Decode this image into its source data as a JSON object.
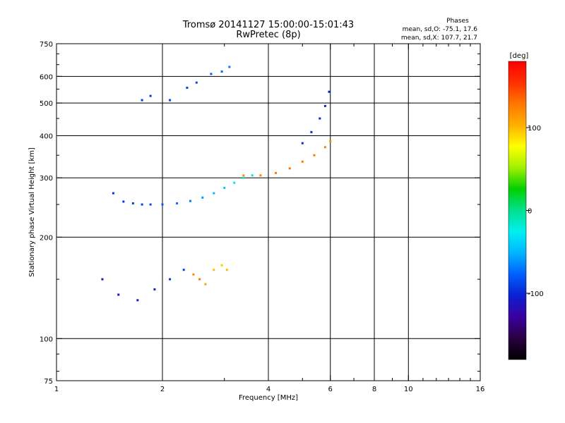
{
  "chart_data": {
    "type": "scatter",
    "title": "Tromsø 20141127 15:00:00-15:01:43",
    "subtitle": "RwPretec (8p)",
    "stats_title": "Phases",
    "stats_o": "mean, sd,O: -75.1, 17.6",
    "stats_x": "mean, sd,X: 107.7, 21.7",
    "xlabel": "Frequency [MHz]",
    "ylabel": "Stationary phase Virtual Height [km]",
    "x_scale": "log",
    "y_scale": "log",
    "xlim": [
      1,
      16
    ],
    "ylim": [
      75,
      750
    ],
    "x_ticks": [
      {
        "value": 1,
        "label": "1"
      },
      {
        "value": 2,
        "label": "2"
      },
      {
        "value": 4,
        "label": "4"
      },
      {
        "value": 6,
        "label": "6"
      },
      {
        "value": 8,
        "label": "8"
      },
      {
        "value": 10,
        "label": "10"
      },
      {
        "value": 16,
        "label": "16"
      }
    ],
    "x_gridlines": [
      2,
      4,
      6,
      8,
      10
    ],
    "y_ticks": [
      {
        "value": 75,
        "label": "75"
      },
      {
        "value": 100,
        "label": "100"
      },
      {
        "value": 200,
        "label": "200"
      },
      {
        "value": 300,
        "label": "300"
      },
      {
        "value": 400,
        "label": "400"
      },
      {
        "value": 500,
        "label": "500"
      },
      {
        "value": 600,
        "label": "600"
      },
      {
        "value": 750,
        "label": "750"
      }
    ],
    "y_gridlines": [
      100,
      200,
      300,
      400,
      500,
      600
    ],
    "grid": true,
    "colorbar": {
      "label": "[deg]",
      "range": [
        -180,
        180
      ],
      "ticks": [
        {
          "value": 100,
          "label": "100"
        },
        {
          "value": 0,
          "label": "0"
        },
        {
          "value": -100,
          "label": "-100"
        }
      ],
      "colors": [
        "#000000",
        "#2a0040",
        "#3b00a0",
        "#0a20d0",
        "#0060ff",
        "#00b4ff",
        "#00f0f0",
        "#00e090",
        "#00d000",
        "#a0f000",
        "#ffff00",
        "#ffb000",
        "#ff7800",
        "#ff3000",
        "#ff0000"
      ]
    },
    "series": [
      {
        "trace": "F-layer O-mode trace (blue)",
        "x": [
          1.45,
          1.55,
          1.65,
          1.75,
          1.85,
          2.0,
          2.2,
          2.4,
          2.6,
          2.8,
          3.0,
          3.2,
          3.4,
          3.6
        ],
        "y": [
          270,
          255,
          252,
          250,
          250,
          250,
          252,
          256,
          262,
          270,
          280,
          290,
          300,
          305
        ],
        "phase": [
          -95,
          -95,
          -92,
          -90,
          -85,
          -80,
          -75,
          -70,
          -60,
          -50,
          -40,
          -30,
          -20,
          -15
        ]
      },
      {
        "trace": "F-layer X-mode trace (orange)",
        "x": [
          3.4,
          3.8,
          4.2,
          4.6,
          5.0,
          5.4,
          5.8,
          6.0
        ],
        "y": [
          305,
          305,
          310,
          320,
          335,
          350,
          370,
          385
        ],
        "phase": [
          120,
          125,
          128,
          130,
          130,
          128,
          125,
          122
        ]
      },
      {
        "trace": "F2 cusp O-mode (blue)",
        "x": [
          5.0,
          5.3,
          5.6,
          5.8,
          5.95
        ],
        "y": [
          380,
          410,
          450,
          490,
          540
        ],
        "phase": [
          -100,
          -100,
          -100,
          -100,
          -100
        ]
      },
      {
        "trace": "Lower spread (blue)",
        "x": [
          1.35,
          1.5,
          1.7,
          1.9,
          2.1,
          2.3
        ],
        "y": [
          150,
          135,
          130,
          140,
          150,
          160
        ],
        "phase": [
          -110,
          -110,
          -105,
          -100,
          -95,
          -90
        ]
      },
      {
        "trace": "Lower spread (orange/yellow)",
        "x": [
          2.45,
          2.55,
          2.65,
          2.8,
          2.95,
          3.05
        ],
        "y": [
          155,
          150,
          145,
          160,
          165,
          160
        ],
        "phase": [
          120,
          130,
          110,
          100,
          95,
          100
        ]
      },
      {
        "trace": "Upper spread (blue)",
        "x": [
          1.75,
          1.85,
          2.1,
          2.35,
          2.5,
          2.75,
          2.95,
          3.1
        ],
        "y": [
          510,
          525,
          510,
          555,
          575,
          610,
          620,
          640
        ],
        "phase": [
          -95,
          -95,
          -90,
          -90,
          -85,
          -80,
          -75,
          -70
        ]
      }
    ]
  }
}
